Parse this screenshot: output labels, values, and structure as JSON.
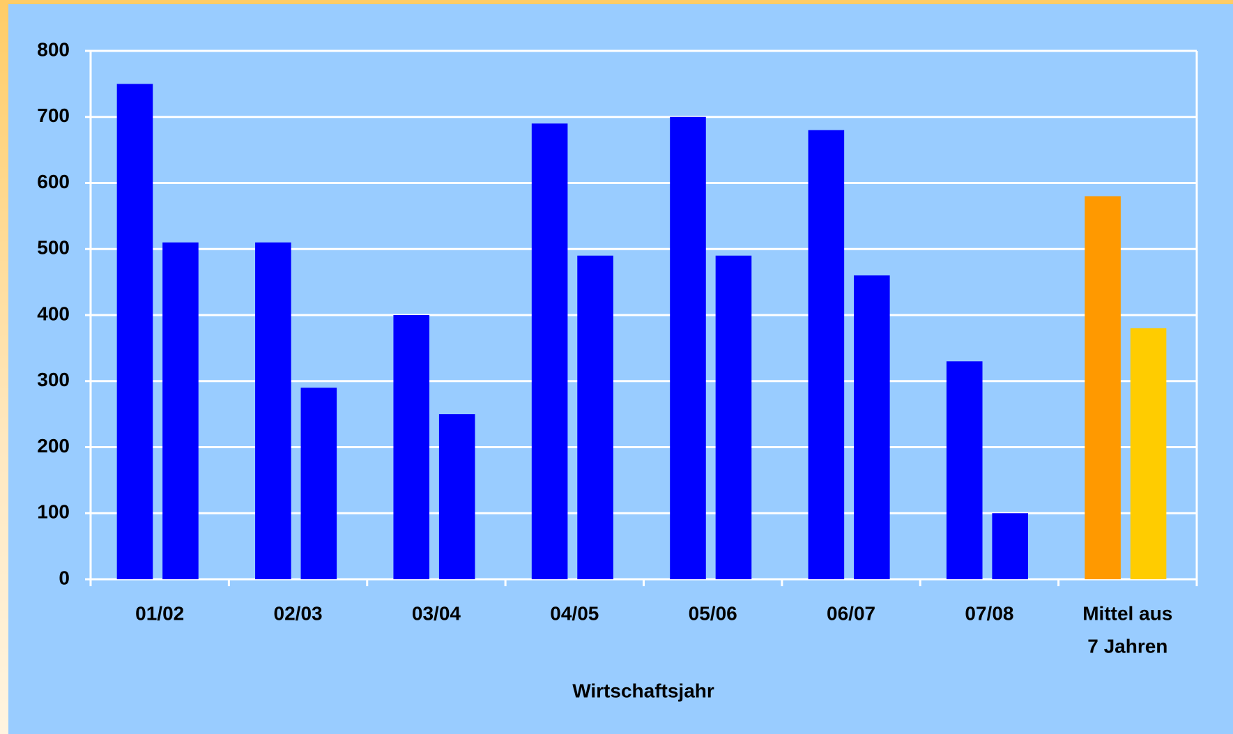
{
  "chart_data": {
    "type": "bar",
    "x_label": "Wirtschaftsjahr",
    "categories": [
      "01/02",
      "02/03",
      "03/04",
      "04/05",
      "05/06",
      "06/07",
      "07/08",
      [
        "Mittel aus",
        "7 Jahren"
      ]
    ],
    "series": [
      {
        "colors": [
          "#0000ff",
          "#0000ff",
          "#0000ff",
          "#0000ff",
          "#0000ff",
          "#0000ff",
          "#0000ff",
          "#ff9900"
        ],
        "values": [
          750,
          510,
          400,
          690,
          700,
          680,
          330,
          580
        ]
      },
      {
        "colors": [
          "#0000ff",
          "#0000ff",
          "#0000ff",
          "#0000ff",
          "#0000ff",
          "#0000ff",
          "#0000ff",
          "#ffcc00"
        ],
        "values": [
          510,
          290,
          250,
          490,
          490,
          460,
          100,
          380
        ]
      }
    ],
    "ylim": [
      0,
      800
    ],
    "yticks": [
      0,
      100,
      200,
      300,
      400,
      500,
      600,
      700,
      800
    ],
    "grid": true
  }
}
